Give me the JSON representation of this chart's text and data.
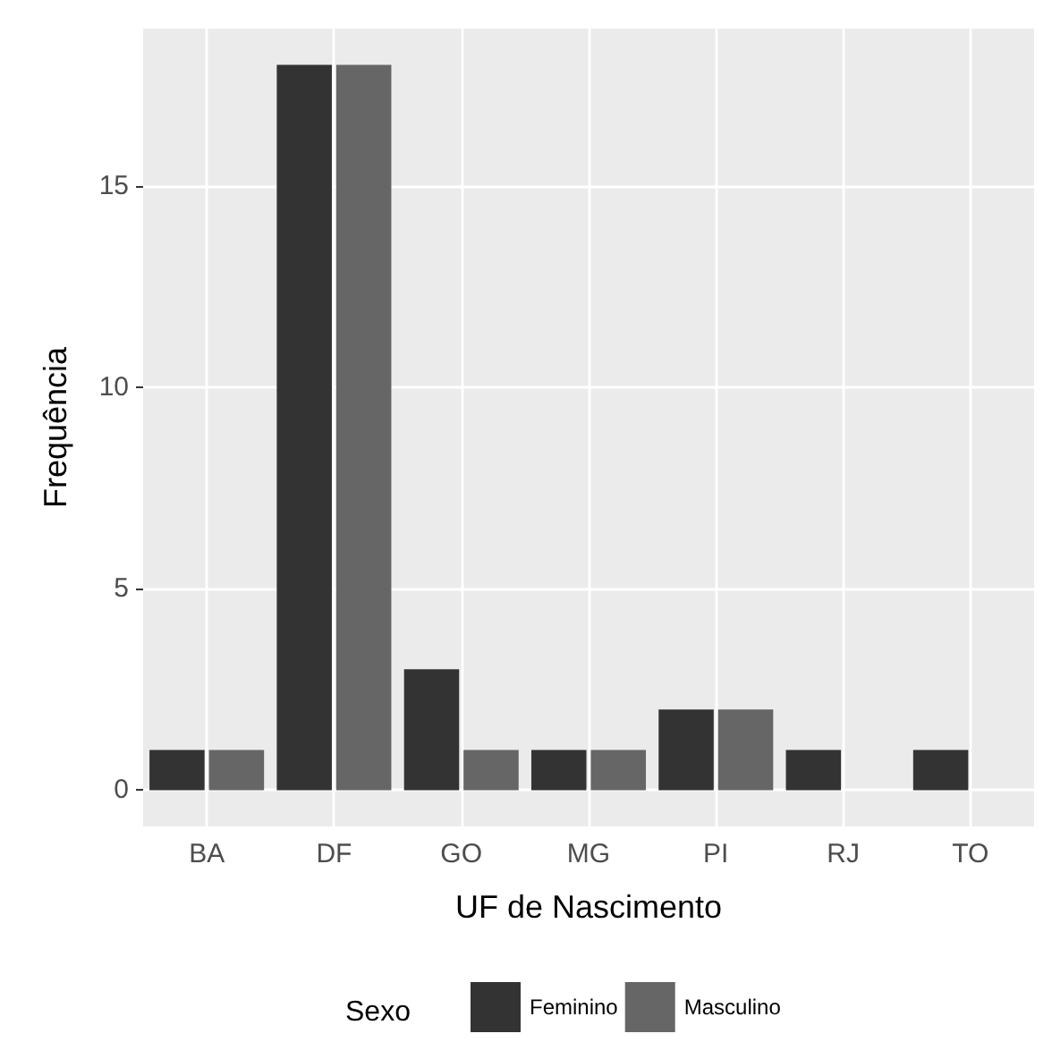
{
  "chart_data": {
    "type": "bar",
    "xlabel": "UF de Nascimento",
    "ylabel": "Frequência",
    "legend_title": "Sexo",
    "categories": [
      "BA",
      "DF",
      "GO",
      "MG",
      "PI",
      "RJ",
      "TO"
    ],
    "series": [
      {
        "name": "Feminino",
        "color": "#333333",
        "values": [
          1,
          18,
          3,
          1,
          2,
          1,
          1
        ]
      },
      {
        "name": "Masculino",
        "color": "#666666",
        "values": [
          1,
          18,
          1,
          1,
          2,
          null,
          null
        ]
      }
    ],
    "ylim": [
      -0.9,
      18.9
    ],
    "yticks": [
      0,
      5,
      10,
      15
    ],
    "grid": true,
    "legend": "bottom"
  }
}
